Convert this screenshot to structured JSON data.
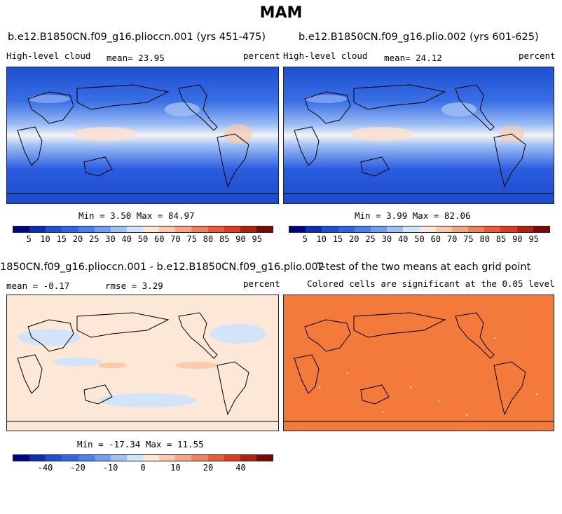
{
  "figure_title": "MAM",
  "panels": {
    "p1": {
      "title": "b.e12.B1850CN.f09_g16.plioccn.001 (yrs 451-475)",
      "left_label": "High-level cloud",
      "center_label": "mean=  23.95",
      "right_label": "percent",
      "minmax": "Min =   3.50 Max =  84.97"
    },
    "p2": {
      "title": "b.e12.B1850CN.f09_g16.plio.002 (yrs 601-625)",
      "left_label": "High-level cloud",
      "center_label": "mean=  24.12",
      "right_label": "percent",
      "minmax": "Min =   3.99 Max =  82.06"
    },
    "p3": {
      "title": "1850CN.f09_g16.plioccn.001 - b.e12.B1850CN.f09_g16.plio.002",
      "left_label": "mean = -0.17",
      "center_label": "rmse =   3.29",
      "right_label": "percent",
      "minmax": "Min = -17.34 Max =  11.55"
    },
    "p4": {
      "title": "T-test of the two means at each grid point",
      "subtitle": "Colored cells are significant at the 0.05 level"
    }
  },
  "colorbar_abs": {
    "colors": [
      "#00008c",
      "#0a2fb4",
      "#1e50d2",
      "#3264e6",
      "#4682ee",
      "#6e9ff2",
      "#a0c0f6",
      "#d2e4fa",
      "#fde7d6",
      "#fbc9ab",
      "#f7a582",
      "#f4805a",
      "#ef5a32",
      "#de3a1c",
      "#b0220e",
      "#7a0a04"
    ],
    "labels": [
      "5",
      "10",
      "15",
      "20",
      "25",
      "30",
      "40",
      "50",
      "60",
      "70",
      "75",
      "80",
      "85",
      "90",
      "95"
    ]
  },
  "colorbar_diff": {
    "colors": [
      "#00008c",
      "#0a2fb4",
      "#1e50d2",
      "#3264e6",
      "#4682ee",
      "#6e9ff2",
      "#a0c0f6",
      "#d2e4fa",
      "#fde7d6",
      "#fbc9ab",
      "#f7a582",
      "#f4805a",
      "#ef5a32",
      "#de3a1c",
      "#b0220e",
      "#7a0a04"
    ],
    "labels": [
      "-40",
      "-20",
      "-10",
      "0",
      "10",
      "20",
      "40"
    ]
  },
  "colors": {
    "abs_background": "#2f5fe0",
    "diff_background": "#fde7d6",
    "ttest_fill": "#f47a3c"
  }
}
